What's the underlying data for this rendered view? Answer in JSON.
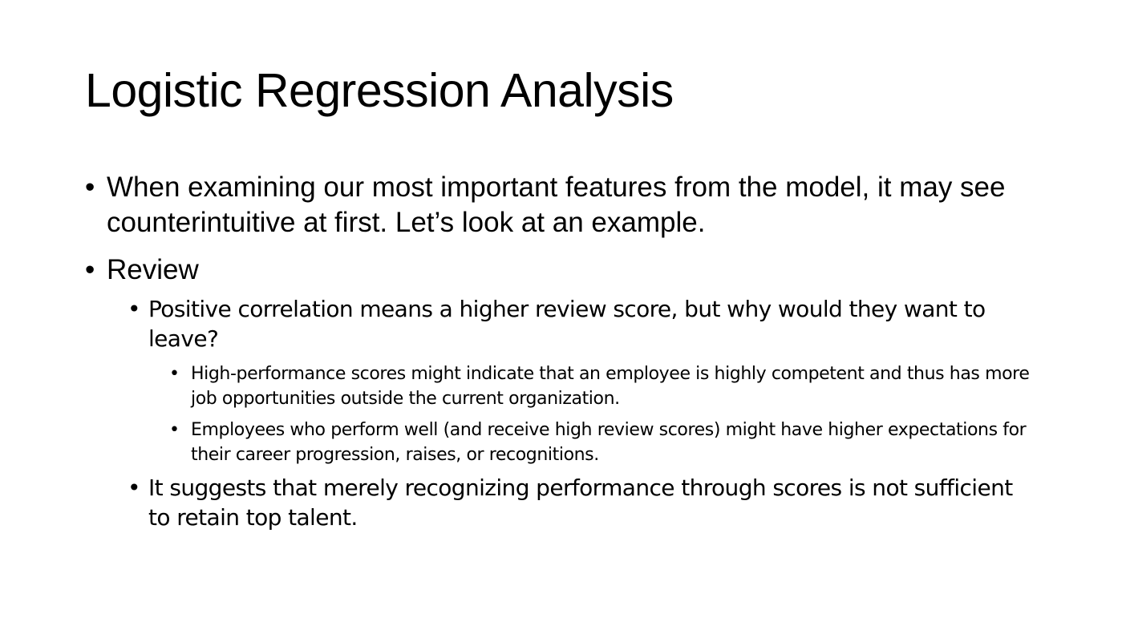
{
  "slide": {
    "title": "Logistic Regression Analysis",
    "bullet_glyph": "•",
    "bullets": [
      {
        "text": "When examining our most important features from the model, it may see counterintuitive at first. Let’s look at an example."
      },
      {
        "text": "Review",
        "children": [
          {
            "text": "Positive correlation means a higher review score, but why would they want to leave?",
            "children": [
              {
                "text": "High-performance scores might indicate that an employee is highly competent and thus has more job opportunities outside the current organization."
              },
              {
                "text": "Employees who perform well (and receive high review scores) might have higher expectations for their career progression, raises, or recognitions."
              }
            ]
          },
          {
            "text": "It suggests that merely recognizing performance through scores is not sufficient to retain top talent."
          }
        ]
      }
    ]
  }
}
